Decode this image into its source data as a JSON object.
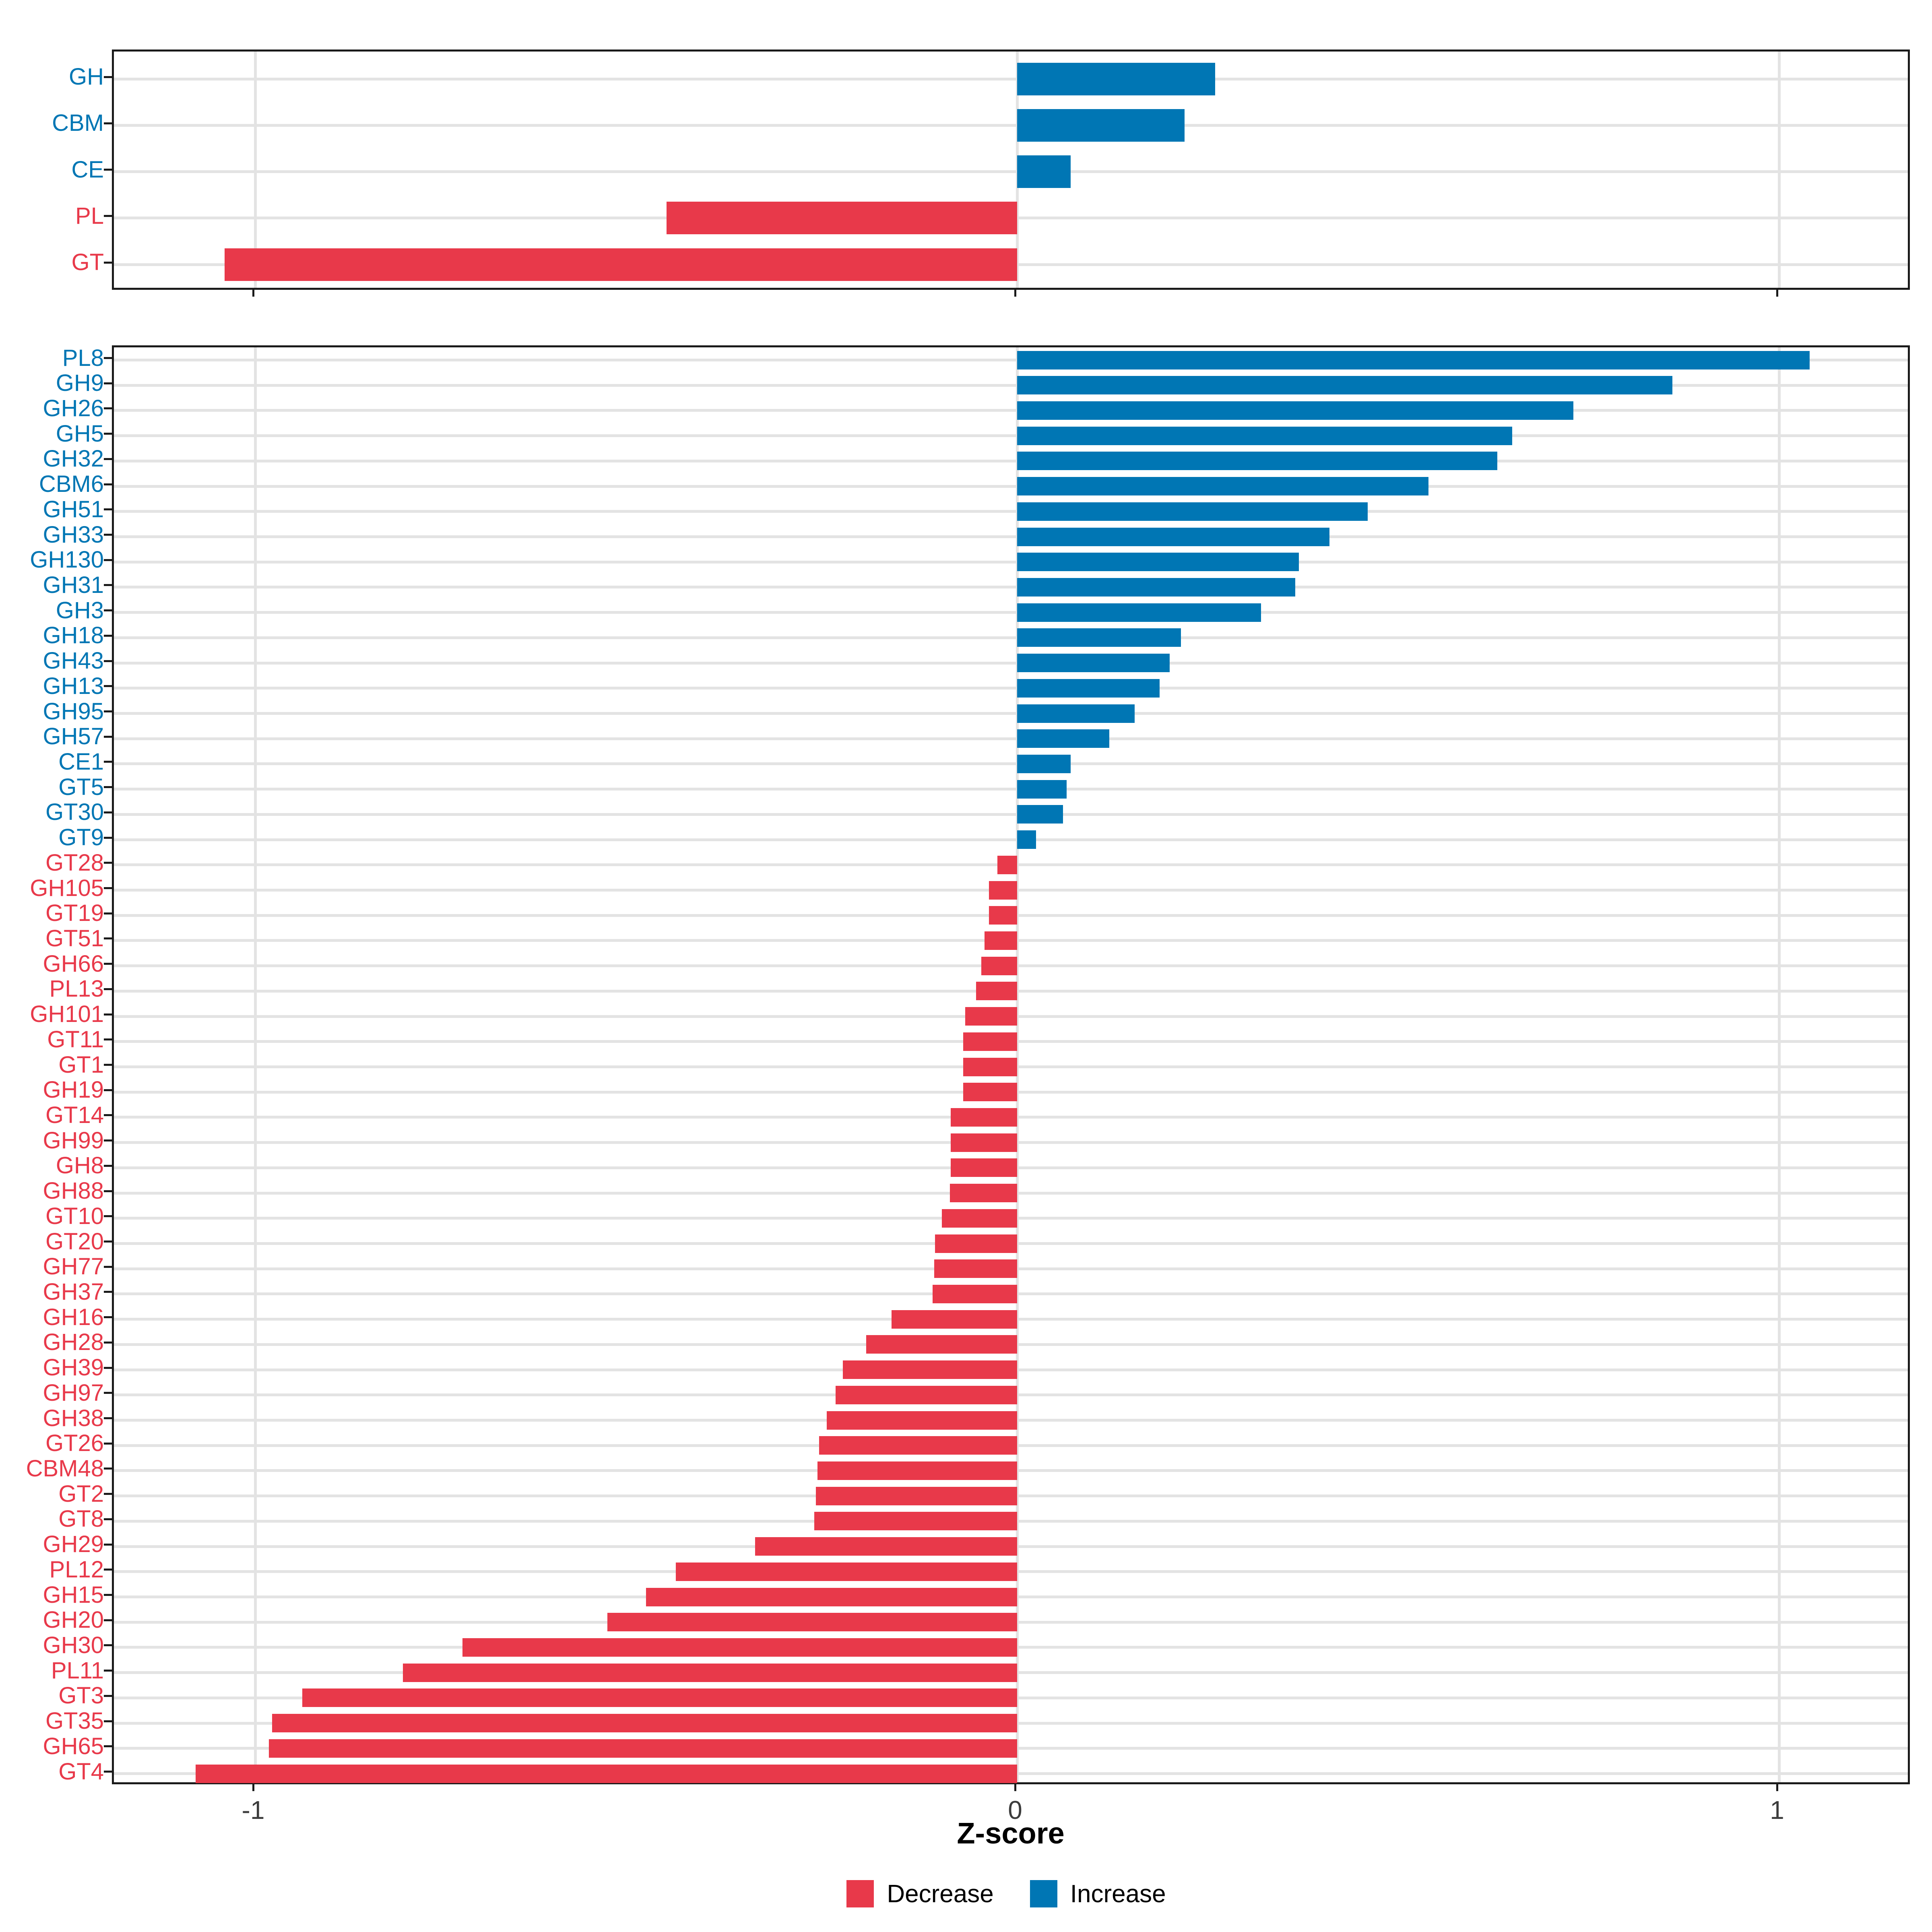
{
  "axis": {
    "label": "Z-score",
    "tick_values": [
      -1,
      0,
      1
    ],
    "tick_labels": [
      "-1",
      "0",
      "1"
    ],
    "range": [
      -1.18,
      1.2
    ]
  },
  "legend": {
    "items": [
      {
        "label": "Decrease",
        "color": "#e8394a"
      },
      {
        "label": "Increase",
        "color": "#0076b4"
      }
    ]
  },
  "colors": {
    "decrease": "#e8394a",
    "increase": "#0076b4",
    "grid": "#e3e3e3",
    "panel_border": "#1a1a1a",
    "tick_label": "#3c3c3c"
  },
  "chart_data": [
    {
      "type": "bar",
      "orientation": "horizontal",
      "title": "",
      "xlabel": "Z-score",
      "xlim": [
        -1.18,
        1.2
      ],
      "grid": true,
      "categories": [
        "GH",
        "CBM",
        "CE",
        "PL",
        "GT"
      ],
      "values": [
        0.26,
        0.22,
        0.07,
        -0.46,
        -1.04
      ]
    },
    {
      "type": "bar",
      "orientation": "horizontal",
      "title": "",
      "xlabel": "Z-score",
      "xlim": [
        -1.18,
        1.2
      ],
      "grid": true,
      "legend_position": "bottom",
      "categories": [
        "PL8",
        "GH9",
        "GH26",
        "GH5",
        "GH32",
        "CBM6",
        "GH51",
        "GH33",
        "GH130",
        "GH31",
        "GH3",
        "GH18",
        "GH43",
        "GH13",
        "GH95",
        "GH57",
        "CE1",
        "GT5",
        "GT30",
        "GT9",
        "GT28",
        "GH105",
        "GT19",
        "GT51",
        "GH66",
        "PL13",
        "GH101",
        "GT11",
        "GT1",
        "GH19",
        "GT14",
        "GH99",
        "GH8",
        "GH88",
        "GT10",
        "GT20",
        "GH77",
        "GH37",
        "GH16",
        "GH28",
        "GH39",
        "GH97",
        "GH38",
        "GT26",
        "CBM48",
        "GT2",
        "GT8",
        "GH29",
        "PL12",
        "GH15",
        "GH20",
        "GH30",
        "PL11",
        "GT3",
        "GT35",
        "GH65",
        "GT4"
      ],
      "values": [
        1.04,
        0.86,
        0.73,
        0.65,
        0.63,
        0.54,
        0.46,
        0.41,
        0.37,
        0.365,
        0.32,
        0.215,
        0.2,
        0.187,
        0.154,
        0.121,
        0.07,
        0.065,
        0.06,
        0.025,
        -0.026,
        -0.037,
        -0.037,
        -0.043,
        -0.047,
        -0.054,
        -0.068,
        -0.071,
        -0.071,
        -0.071,
        -0.087,
        -0.087,
        -0.087,
        -0.088,
        -0.099,
        -0.108,
        -0.109,
        -0.111,
        -0.165,
        -0.198,
        -0.229,
        -0.238,
        -0.25,
        -0.26,
        -0.262,
        -0.264,
        -0.266,
        -0.344,
        -0.448,
        -0.487,
        -0.538,
        -0.728,
        -0.806,
        -0.938,
        -0.978,
        -0.982,
        -1.078
      ]
    }
  ]
}
